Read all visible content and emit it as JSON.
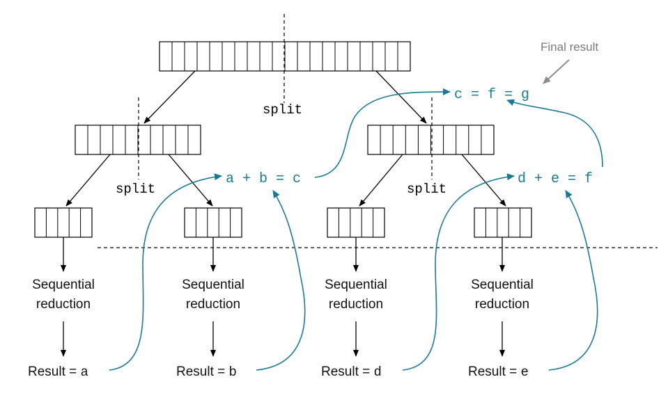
{
  "labels": {
    "final_result": "Final result",
    "split": "split",
    "sequential_line1": "Sequential",
    "sequential_line2": "reduction",
    "result_prefix": "Result = "
  },
  "equations": {
    "top": "c = f = g",
    "left": "a + b = c",
    "right": "d + e = f"
  },
  "leaf_results": [
    "a",
    "b",
    "d",
    "e"
  ],
  "arrays": {
    "root_cells": 20,
    "mid_cells": 10,
    "leaf_cells": 5
  },
  "colors": {
    "flow": "#1a7a94",
    "annotation": "#8c8c8c",
    "line": "#000000"
  }
}
